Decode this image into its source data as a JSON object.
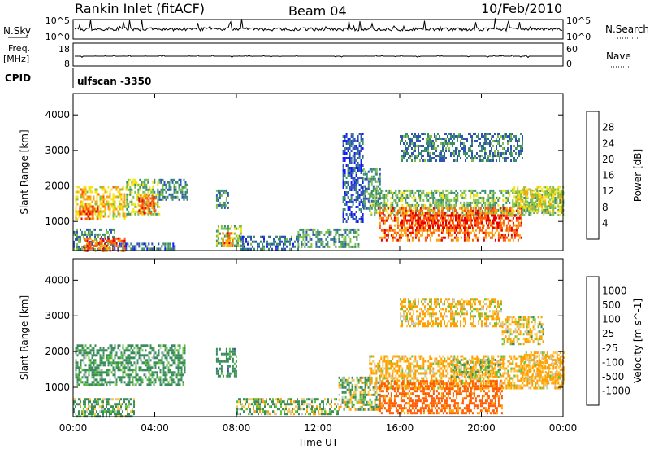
{
  "header": {
    "station": "Rankin Inlet (fitACF)",
    "beam": "Beam 04",
    "date": "10/Feb/2010"
  },
  "noise_panel": {
    "left_label": "N.Sky",
    "left_ticks": [
      "10^5",
      "10^0"
    ],
    "right_label": "N.Search",
    "right_ticks": [
      "10^5",
      "10^0"
    ]
  },
  "freq_panel": {
    "left_label_line1": "Freq.",
    "left_label_line2": "[MHz]",
    "left_ticks": [
      "18",
      "8"
    ],
    "right_label": "Nave",
    "right_ticks": [
      "60",
      "0"
    ]
  },
  "cpid": {
    "label": "CPID",
    "value": "ulfscan -3350"
  },
  "colors": {
    "power": [
      "#1515ff",
      "#2f52b9",
      "#3a8d6d",
      "#7fc04a",
      "#f4e410",
      "#f9a70e",
      "#ff5a0a",
      "#e60000"
    ],
    "velocity": [
      "#ff0000",
      "#ff5a00",
      "#ffa000",
      "#ffc840",
      "#c8c8c8",
      "#63c535",
      "#3a8c5c",
      "#2e5aa4",
      "#2030c8"
    ]
  },
  "chart_data": [
    {
      "type": "heatmap",
      "title": "",
      "xlabel": "Time UT",
      "ylabel": "Slant Range [km]",
      "x_ticks": [
        "00:00",
        "04:00",
        "08:00",
        "12:00",
        "16:00",
        "20:00",
        "00:00"
      ],
      "y_ticks": [
        "1000",
        "2000",
        "3000",
        "4000"
      ],
      "ylim": [
        180,
        4600
      ],
      "colorbar_label": "Power [dB]",
      "colorbar_ticks": [
        "4",
        "8",
        "12",
        "16",
        "20",
        "24",
        "28"
      ],
      "colorbar_range": [
        0,
        32
      ],
      "regions": [
        {
          "t": [
            0.1,
            2.6
          ],
          "r": [
            1100,
            2000
          ],
          "v": 20
        },
        {
          "t": [
            2.6,
            4.2
          ],
          "r": [
            1200,
            2200
          ],
          "v": 14
        },
        {
          "t": [
            3.2,
            4.0
          ],
          "r": [
            1250,
            1750
          ],
          "v": 26
        },
        {
          "t": [
            4.2,
            5.6
          ],
          "r": [
            1600,
            2200
          ],
          "v": 9
        },
        {
          "t": [
            0.3,
            1.2
          ],
          "r": [
            1100,
            1450
          ],
          "v": 27
        },
        {
          "t": [
            0.0,
            2.0
          ],
          "r": [
            200,
            800
          ],
          "v": 10
        },
        {
          "t": [
            0.5,
            2.5
          ],
          "r": [
            200,
            550
          ],
          "v": 26
        },
        {
          "t": [
            2.0,
            5.0
          ],
          "r": [
            200,
            400
          ],
          "v": 8
        },
        {
          "t": [
            7.0,
            8.2
          ],
          "r": [
            300,
            900
          ],
          "v": 14
        },
        {
          "t": [
            7.3,
            7.9
          ],
          "r": [
            300,
            700
          ],
          "v": 24
        },
        {
          "t": [
            8.2,
            11.0
          ],
          "r": [
            250,
            600
          ],
          "v": 8
        },
        {
          "t": [
            11.0,
            14.0
          ],
          "r": [
            300,
            800
          ],
          "v": 11
        },
        {
          "t": [
            13.2,
            14.2
          ],
          "r": [
            1000,
            3500
          ],
          "v": 6
        },
        {
          "t": [
            14.5,
            24.0
          ],
          "r": [
            1200,
            1900
          ],
          "v": 13
        },
        {
          "t": [
            15.0,
            22.0
          ],
          "r": [
            500,
            1400
          ],
          "v": 25
        },
        {
          "t": [
            16.0,
            21.0
          ],
          "r": [
            800,
            1200
          ],
          "v": 29
        },
        {
          "t": [
            14.2,
            15.0
          ],
          "r": [
            1400,
            2500
          ],
          "v": 10
        },
        {
          "t": [
            16.0,
            22.0
          ],
          "r": [
            2700,
            3500
          ],
          "v": 9
        },
        {
          "t": [
            21.5,
            24.0
          ],
          "r": [
            1300,
            2000
          ],
          "v": 17
        },
        {
          "t": [
            7.0,
            7.6
          ],
          "r": [
            1400,
            1900
          ],
          "v": 10
        }
      ]
    },
    {
      "type": "heatmap",
      "title": "",
      "xlabel": "Time UT",
      "ylabel": "Slant Range [km]",
      "x_ticks": [
        "00:00",
        "04:00",
        "08:00",
        "12:00",
        "16:00",
        "20:00",
        "00:00"
      ],
      "y_ticks": [
        "1000",
        "2000",
        "3000",
        "4000"
      ],
      "ylim": [
        180,
        4600
      ],
      "colorbar_label": "Velocity [m s^-1]",
      "colorbar_ticks": [
        "-1000",
        "-500",
        "-100",
        "-25",
        "25",
        "100",
        "500",
        "1000"
      ],
      "regions": [
        {
          "t": [
            0.1,
            5.5
          ],
          "r": [
            1100,
            2200
          ],
          "v": 250
        },
        {
          "t": [
            0.0,
            3.0
          ],
          "r": [
            200,
            700
          ],
          "v": 150
        },
        {
          "t": [
            7.0,
            8.0
          ],
          "r": [
            1300,
            2100
          ],
          "v": 300
        },
        {
          "t": [
            8.0,
            13.0
          ],
          "r": [
            250,
            700
          ],
          "v": 80
        },
        {
          "t": [
            13.0,
            15.0
          ],
          "r": [
            400,
            1300
          ],
          "v": 60
        },
        {
          "t": [
            14.5,
            24.0
          ],
          "r": [
            1000,
            1900
          ],
          "v": -180
        },
        {
          "t": [
            15.0,
            21.0
          ],
          "r": [
            300,
            1200
          ],
          "v": -650
        },
        {
          "t": [
            18.5,
            21.0
          ],
          "r": [
            1300,
            1800
          ],
          "v": 0
        },
        {
          "t": [
            16.0,
            21.0
          ],
          "r": [
            2700,
            3500
          ],
          "v": -150
        },
        {
          "t": [
            21.0,
            23.0
          ],
          "r": [
            2200,
            3000
          ],
          "v": -120
        },
        {
          "t": [
            22.0,
            24.0
          ],
          "r": [
            1200,
            2000
          ],
          "v": -200
        }
      ]
    }
  ]
}
